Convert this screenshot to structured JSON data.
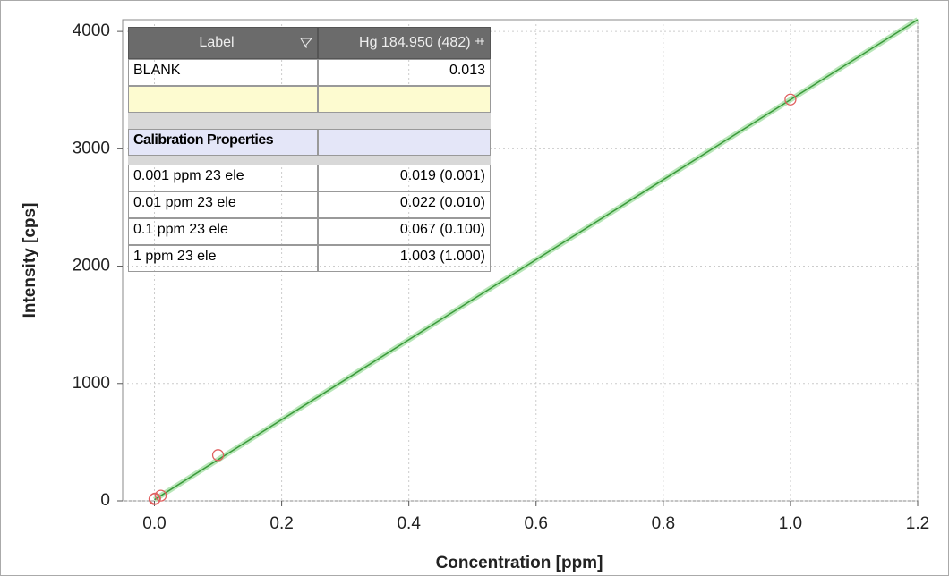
{
  "chart_data": {
    "type": "scatter",
    "xlabel": "Concentration [ppm]",
    "ylabel": "Intensity [cps]",
    "xlim": [
      -0.05,
      1.2
    ],
    "ylim": [
      0,
      4100
    ],
    "xticks": [
      {
        "value": 0,
        "label": "0.0"
      },
      0.2,
      0.4,
      0.6,
      0.8,
      {
        "value": 1,
        "label": "1.0"
      },
      1.2
    ],
    "yticks": [
      0,
      1000,
      2000,
      3000,
      4000
    ],
    "grid": true,
    "points": {
      "x": [
        0,
        0.001,
        0.01,
        0.1,
        1.0
      ],
      "values": [
        15,
        20,
        45,
        390,
        3420
      ],
      "color": "#e06060"
    },
    "fit": {
      "x": [
        0,
        1.2
      ],
      "values": [
        10,
        4100
      ],
      "color": "#3a9a3a"
    }
  },
  "table": {
    "header": [
      "Label",
      "Hg 184.950 (482)"
    ],
    "rows": [
      [
        "BLANK",
        "0.013"
      ]
    ],
    "section": "Calibration Properties",
    "calibration": [
      [
        "0.001 ppm 23 ele",
        "0.019 (0.001)"
      ],
      [
        "0.01 ppm 23 ele",
        "0.022 (0.010)"
      ],
      [
        "0.1 ppm 23 ele",
        "0.067 (0.100)"
      ],
      [
        "1 ppm 23 ele",
        "1.003 (1.000)"
      ]
    ]
  }
}
